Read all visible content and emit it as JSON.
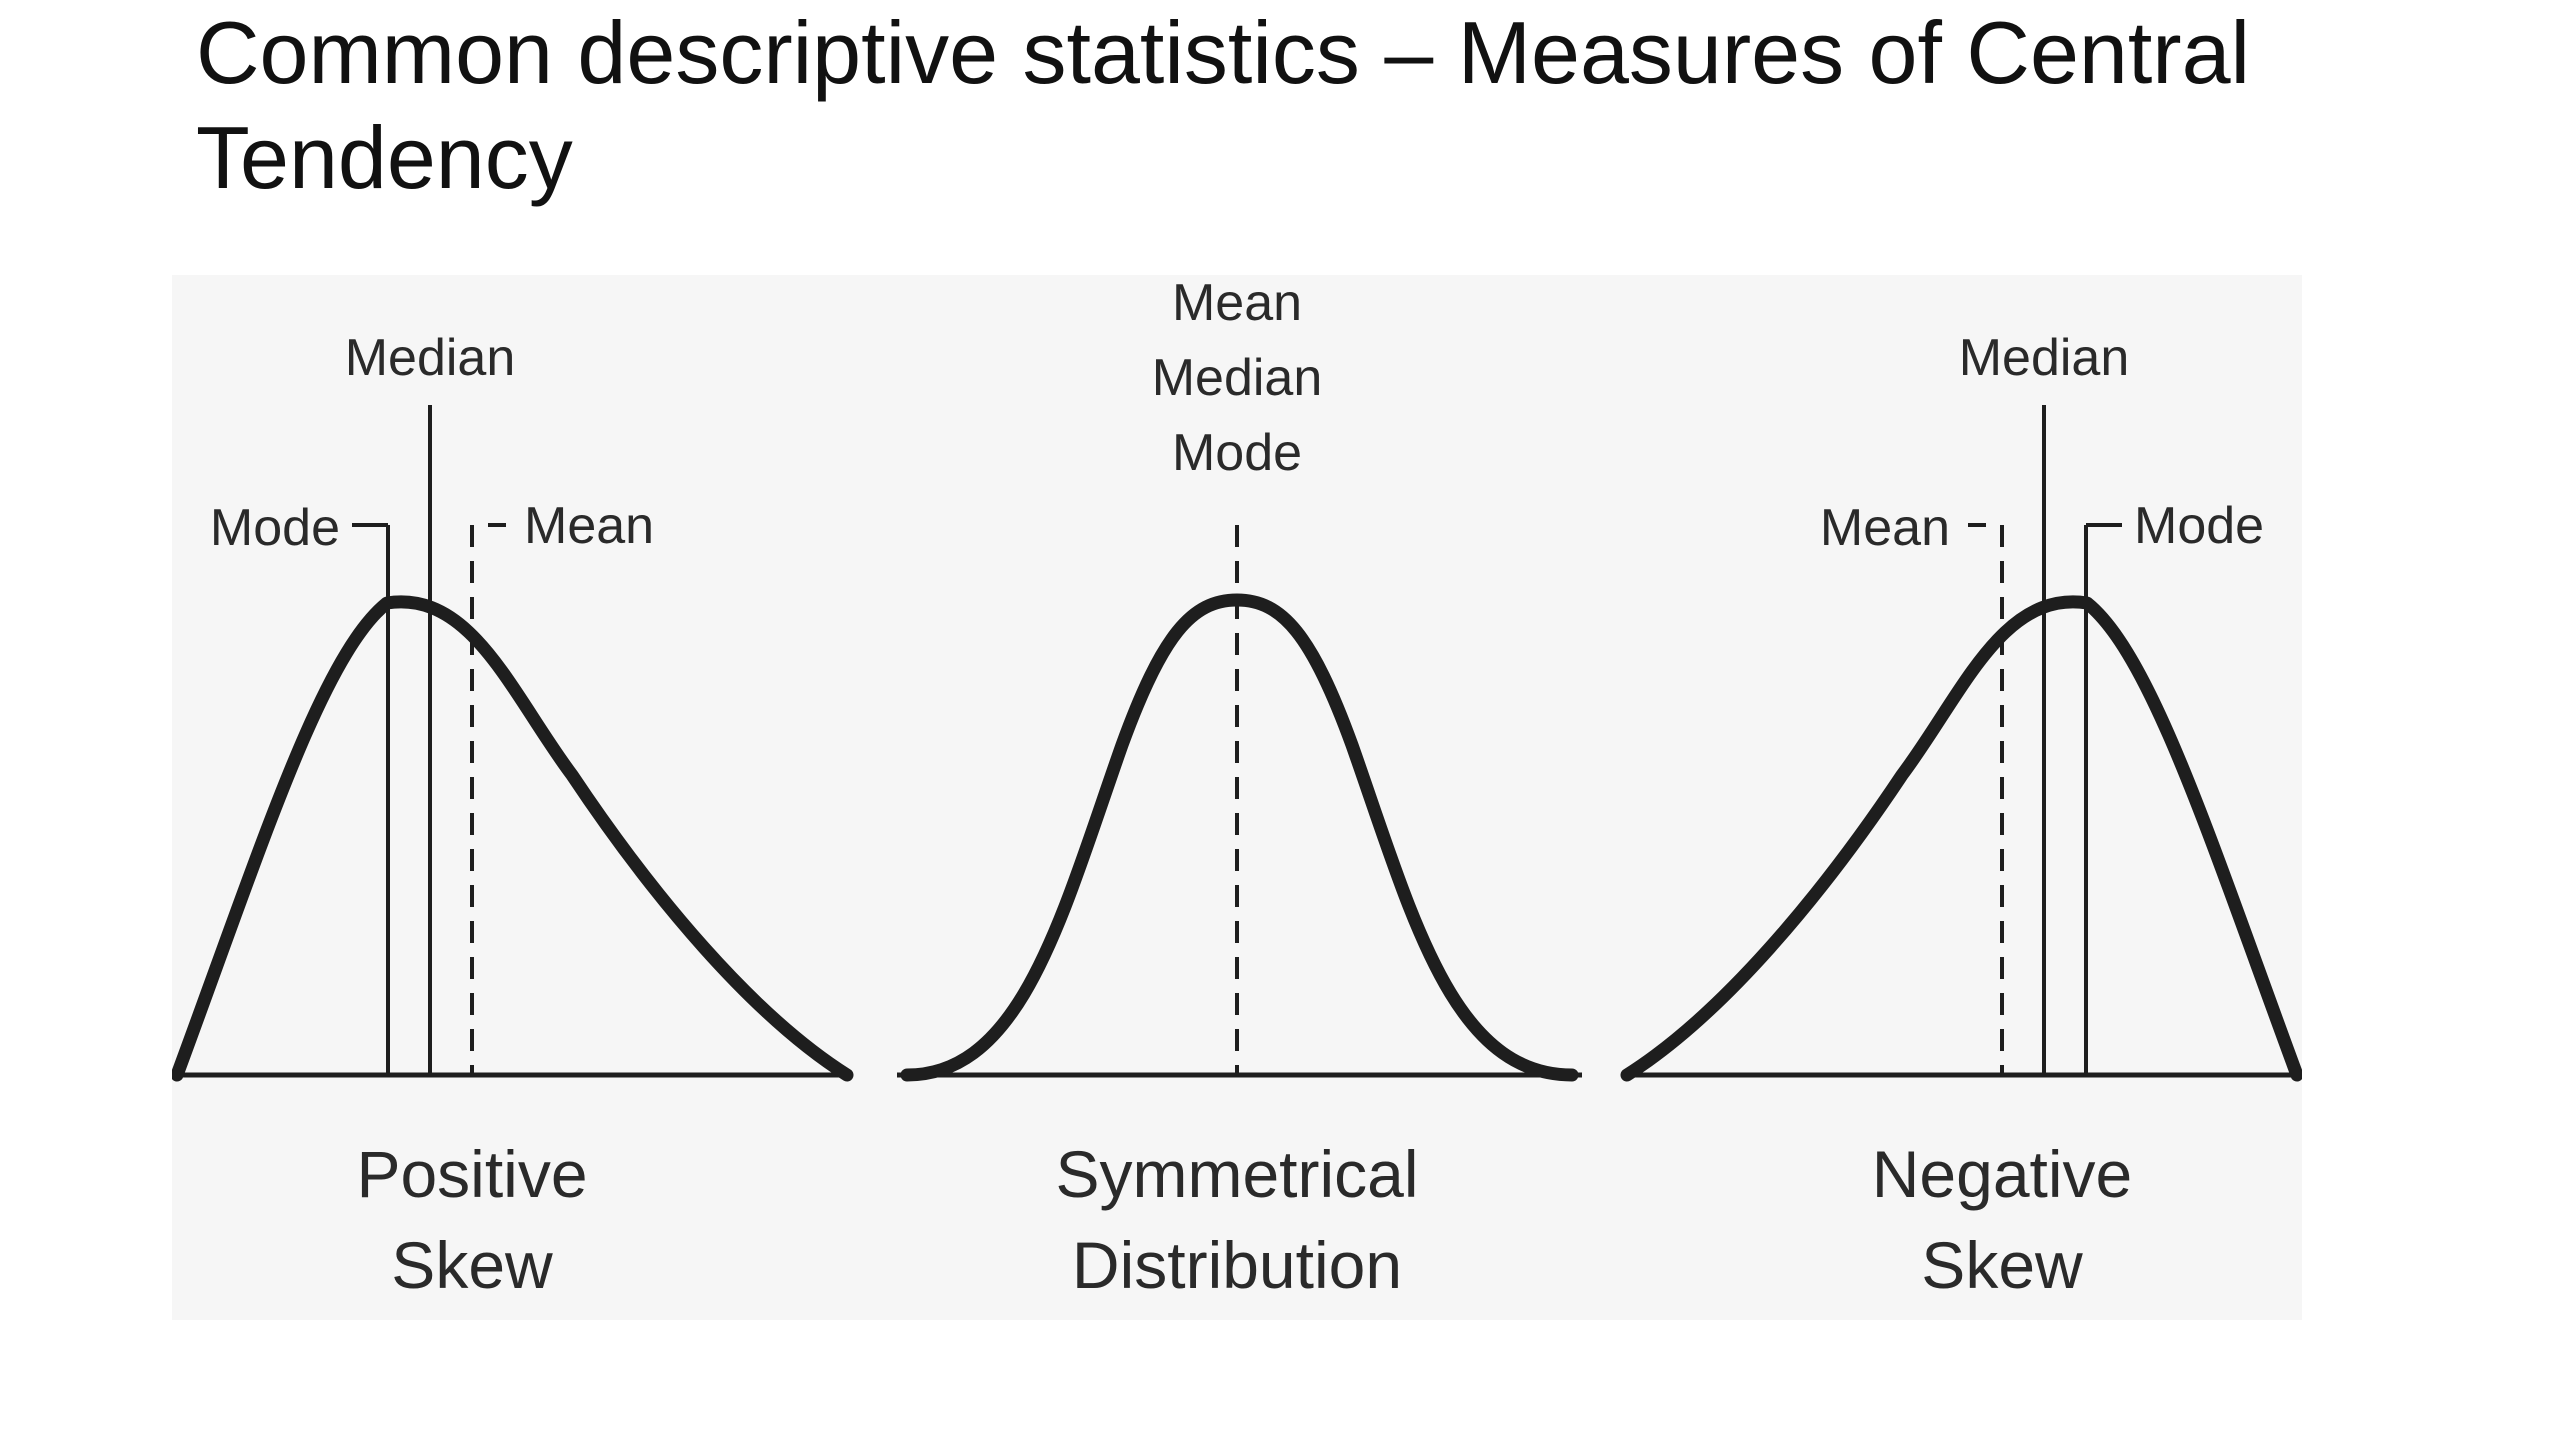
{
  "slide": {
    "title_line1": "Common descriptive statistics – Measures of Central",
    "title_line2": "Tendency"
  },
  "diagram": {
    "panels": [
      {
        "labels": {
          "median": "Median",
          "mode": "Mode",
          "mean": "Mean"
        },
        "caption_line1": "Positive",
        "caption_line2": "Skew"
      },
      {
        "labels": {
          "mean": "Mean",
          "median": "Median",
          "mode": "Mode"
        },
        "caption_line1": "Symmetrical",
        "caption_line2": "Distribution"
      },
      {
        "labels": {
          "median": "Median",
          "mean": "Mean",
          "mode": "Mode"
        },
        "caption_line1": "Negative",
        "caption_line2": "Skew"
      }
    ],
    "colors": {
      "background": "#f6f6f6",
      "stroke": "#1e1e1e",
      "text": "#2a2a2a"
    }
  }
}
